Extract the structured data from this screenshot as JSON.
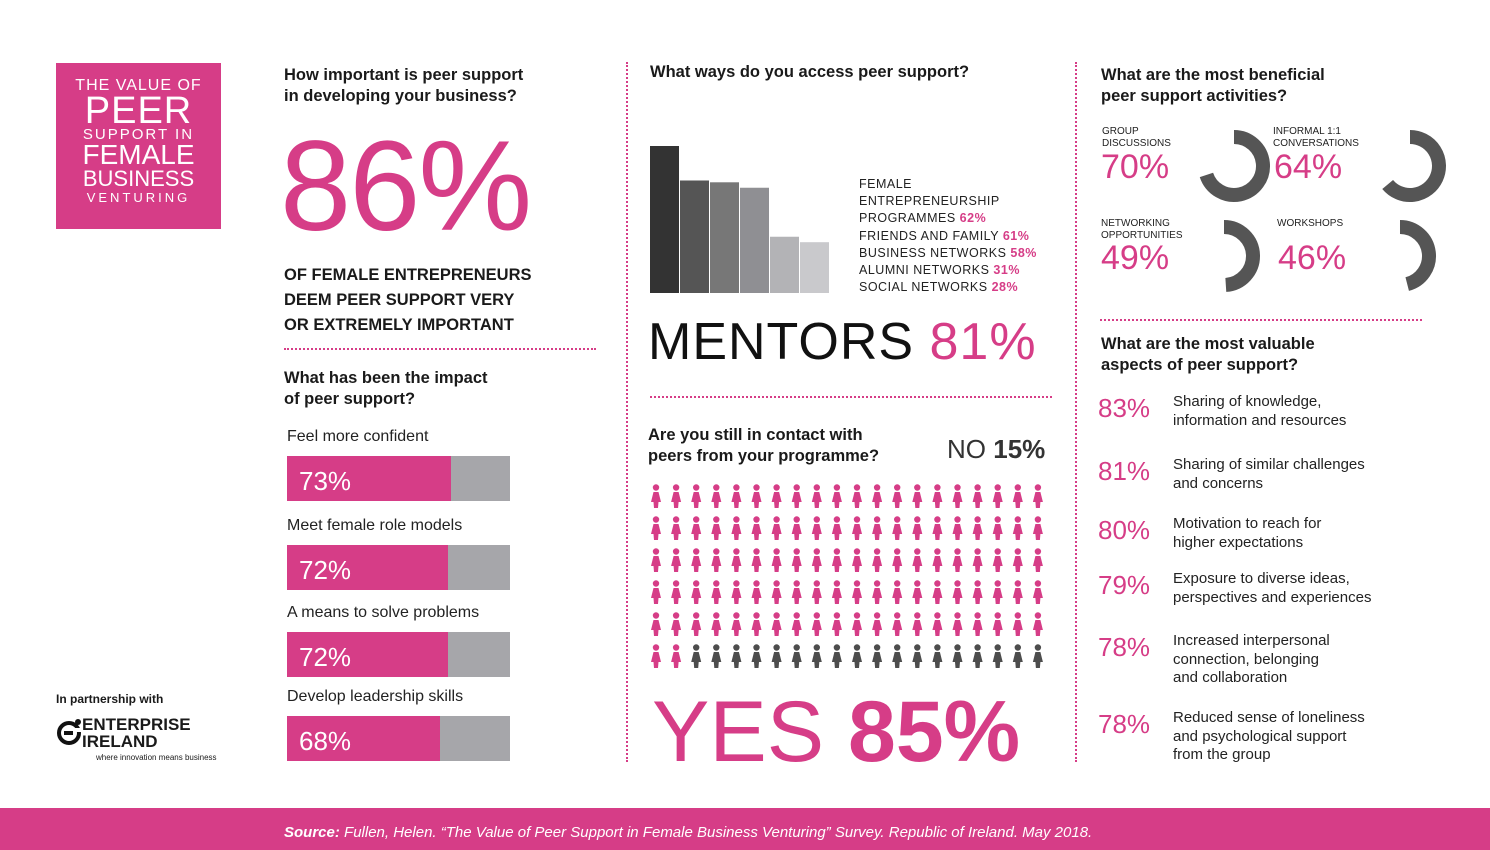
{
  "title_box": {
    "line1": "THE VALUE OF",
    "line2": "PEER",
    "line3": "SUPPORT IN",
    "line4": "FEMALE",
    "line5": "BUSINESS",
    "line6": "VENTURING"
  },
  "importance": {
    "question_l1": "How important is peer support",
    "question_l2": "in developing your business?",
    "big_stat": "86%",
    "statement_l1": "OF FEMALE ENTREPRENEURS",
    "statement_l2": "DEEM PEER SUPPORT VERY",
    "statement_l3": "OR EXTREMELY IMPORTANT"
  },
  "impact": {
    "question_l1": "What has been the impact",
    "question_l2": "of peer support?",
    "items": [
      {
        "label": "Feel more confident",
        "pct": "73%",
        "value": 73
      },
      {
        "label": "Meet female role models",
        "pct": "72%",
        "value": 72
      },
      {
        "label": "A means to solve problems",
        "pct": "72%",
        "value": 72
      },
      {
        "label": "Develop leadership skills",
        "pct": "68%",
        "value": 68
      }
    ]
  },
  "partner": {
    "intro": "In partnership with",
    "org_l1": "ENTERPRISE",
    "org_l2": "IRELAND",
    "tagline": "where innovation means business"
  },
  "access": {
    "question": "What ways do you access peer support?",
    "legend": [
      {
        "label": "FEMALE",
        "pct": ""
      },
      {
        "label": "ENTREPRENEURSHIP",
        "pct": ""
      },
      {
        "label": "PROGRAMMES",
        "pct": "62%"
      },
      {
        "label": "FRIENDS AND FAMILY",
        "pct": "61%"
      },
      {
        "label": "BUSINESS NETWORKS",
        "pct": "58%"
      },
      {
        "label": "ALUMNI NETWORKS",
        "pct": "31%"
      },
      {
        "label": "SOCIAL NETWORKS",
        "pct": "28%"
      }
    ],
    "mentors_label": "MENTORS",
    "mentors_pct": "81%"
  },
  "contact": {
    "question_l1": "Are you still in contact with",
    "question_l2": "peers from your programme?",
    "no_label": "NO",
    "no_pct": "15%",
    "yes_label": "YES",
    "yes_pct": "85%"
  },
  "activities": {
    "question_l1": "What are the most beneficial",
    "question_l2": "peer support activities?",
    "items": [
      {
        "label_l1": "GROUP",
        "label_l2": "DISCUSSIONS",
        "pct": "70%",
        "value": 70
      },
      {
        "label_l1": "INFORMAL 1:1",
        "label_l2": "CONVERSATIONS",
        "pct": "64%",
        "value": 64
      },
      {
        "label_l1": "NETWORKING",
        "label_l2": "OPPORTUNITIES",
        "pct": "49%",
        "value": 49
      },
      {
        "label_l1": "WORKSHOPS",
        "label_l2": "",
        "pct": "46%",
        "value": 46
      }
    ]
  },
  "aspects": {
    "question_l1": "What are the most valuable",
    "question_l2": "aspects of peer support?",
    "items": [
      {
        "pct": "83%",
        "lines": [
          "Sharing of knowledge,",
          "information and resources"
        ]
      },
      {
        "pct": "81%",
        "lines": [
          "Sharing of similar challenges",
          "and concerns"
        ]
      },
      {
        "pct": "80%",
        "lines": [
          "Motivation to reach for",
          "higher expectations"
        ]
      },
      {
        "pct": "79%",
        "lines": [
          "Exposure to diverse ideas,",
          "perspectives and experiences"
        ]
      },
      {
        "pct": "78%",
        "lines": [
          "Increased interpersonal",
          "connection, belonging",
          "and collaboration"
        ]
      },
      {
        "pct": "78%",
        "lines": [
          "Reduced sense of loneliness",
          "and psychological support",
          "from the group"
        ]
      }
    ]
  },
  "footer": {
    "source_label": "Source:",
    "source_text": "Fullen, Helen. “The Value of Peer Support in Female Business Venturing” Survey. Republic of Ireland. May 2018."
  },
  "colors": {
    "accent": "#d63d87",
    "grey_bar": "#a6a6aa",
    "dark_ring": "#555555"
  },
  "chart_data": [
    {
      "type": "bar",
      "categories": [
        "MENTORS",
        "FEMALE ENTREPRENEURSHIP PROGRAMMES",
        "FRIENDS AND FAMILY",
        "BUSINESS NETWORKS",
        "ALUMNI NETWORKS",
        "SOCIAL NETWORKS"
      ],
      "values": [
        81,
        62,
        61,
        58,
        31,
        28
      ],
      "title": "What ways do you access peer support?",
      "ylim": [
        0,
        81
      ],
      "grid": false
    },
    {
      "type": "bar",
      "categories": [
        "Feel more confident",
        "Meet female role models",
        "A means to solve problems",
        "Develop leadership skills"
      ],
      "values": [
        73,
        72,
        72,
        68
      ],
      "title": "What has been the impact of peer support?",
      "ylim": [
        0,
        100
      ]
    },
    {
      "type": "pie",
      "categories": [
        "GROUP DISCUSSIONS",
        "INFORMAL 1:1 CONVERSATIONS",
        "NETWORKING OPPORTUNITIES",
        "WORKSHOPS"
      ],
      "values": [
        70,
        64,
        49,
        46
      ],
      "title": "What are the most beneficial peer support activities?"
    },
    {
      "type": "pie",
      "categories": [
        "YES",
        "NO"
      ],
      "values": [
        85,
        15
      ],
      "title": "Are you still in contact with peers from your programme?"
    }
  ]
}
